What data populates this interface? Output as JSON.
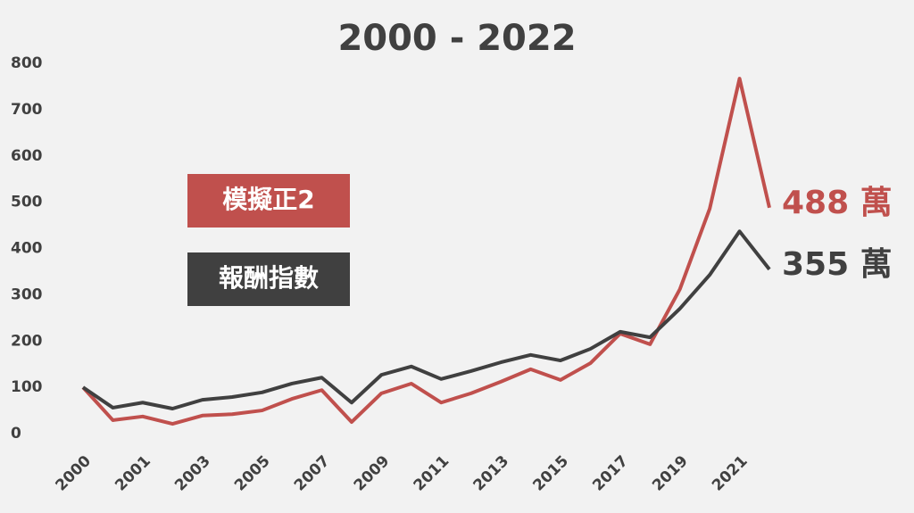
{
  "chart_data": {
    "type": "line",
    "title": "2000 - 2022",
    "categories": [
      "2000",
      null,
      "2001",
      null,
      "2003",
      null,
      "2005",
      null,
      "2007",
      null,
      "2009",
      null,
      "2011",
      null,
      "2013",
      null,
      "2015",
      null,
      "2017",
      null,
      "2019",
      null,
      "2021",
      null
    ],
    "series": [
      {
        "name": "模擬正2",
        "color": "#c0504d",
        "values": [
          100,
          29,
          37,
          21,
          39,
          42,
          50,
          75,
          94,
          25,
          87,
          108,
          67,
          87,
          112,
          139,
          116,
          152,
          216,
          193,
          312,
          486,
          767,
          488
        ],
        "value_labels": [
          null,
          null,
          null,
          null,
          null,
          null,
          null,
          null,
          null,
          null,
          null,
          null,
          null,
          null,
          null,
          null,
          null,
          null,
          null,
          null,
          null,
          null,
          null,
          "488 萬"
        ]
      },
      {
        "name": "報酬指數",
        "color": "#404040",
        "values": [
          100,
          56,
          67,
          54,
          73,
          79,
          89,
          108,
          121,
          67,
          127,
          145,
          118,
          135,
          154,
          170,
          158,
          183,
          220,
          208,
          270,
          343,
          437,
          355
        ],
        "value_labels": [
          null,
          null,
          null,
          null,
          null,
          null,
          null,
          null,
          null,
          null,
          null,
          null,
          null,
          null,
          null,
          null,
          null,
          null,
          null,
          null,
          null,
          null,
          null,
          "355 萬"
        ]
      }
    ],
    "ylim": [
      0,
      800
    ],
    "yticks": [
      0,
      100,
      200,
      300,
      400,
      500,
      600,
      700,
      800
    ],
    "grid": false
  }
}
